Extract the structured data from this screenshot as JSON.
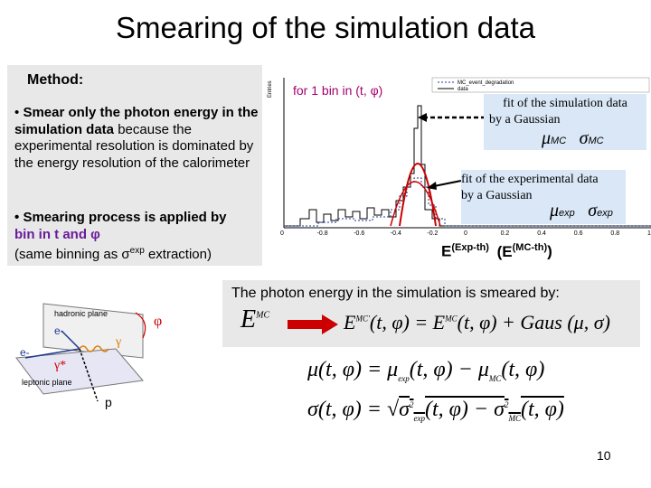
{
  "title": "Smearing of the simulation data",
  "method_label": "Method:",
  "bullet1": {
    "marker": "•",
    "p1": "Smear only the photon energy in the simulation data",
    "p2": " because the experimental resolution is dominated by the energy resolution of the calorimeter"
  },
  "bullet2": {
    "marker": "•",
    "p1": "Smearing process is applied by",
    "p2": "bin in  t and φ",
    "p3": "(same binning as σ",
    "p3_sup": "exp",
    "p3_end": " extraction)"
  },
  "plot": {
    "bin_label": "for 1 bin in (t, φ)",
    "y_axis_label": "Entries",
    "legend_1": "MC_event_degradation",
    "legend_2": "data",
    "x_ticks": [
      "0",
      "-0.8",
      "-0.6",
      "-0.4",
      "-0.2",
      "0",
      "0.2",
      "0.4",
      "0.6",
      "0.8",
      "1"
    ]
  },
  "fit_mc": {
    "line1": "fit of  the simulation data",
    "line2": "by a Gaussian",
    "mu": "μ",
    "mu_sub": "MC",
    "sigma": "σ",
    "sigma_sub": "MC"
  },
  "fit_exp": {
    "line1": "fit of  the experimental data",
    "line2": "by a Gaussian",
    "mu": "μ",
    "mu_sub": "exp",
    "sigma": "σ",
    "sigma_sub": "exp"
  },
  "e_exp_th": "E",
  "e_exp_th_sup": "(Exp-th)",
  "e_mc_th_open": "(E",
  "e_mc_th_sup": "(MC-th)",
  "e_mc_th_close": ")",
  "smear_text": "The photon energy in the simulation  is smeared by:",
  "diagram": {
    "hadronic_plane": "hadronic plane",
    "leptonic_plane": "leptonic plane",
    "phi": "φ",
    "e_minus_top": "e-",
    "e_minus": "e-",
    "gamma": "γ",
    "gamma_star": "γ*",
    "p": "p"
  },
  "slide_number": "10",
  "colors": {
    "accent_red": "#cc0000",
    "purple": "#6a1b9a",
    "blue": "#1f3a93",
    "magenta": "#a6006f",
    "fit_box": "#d9e7f7"
  }
}
